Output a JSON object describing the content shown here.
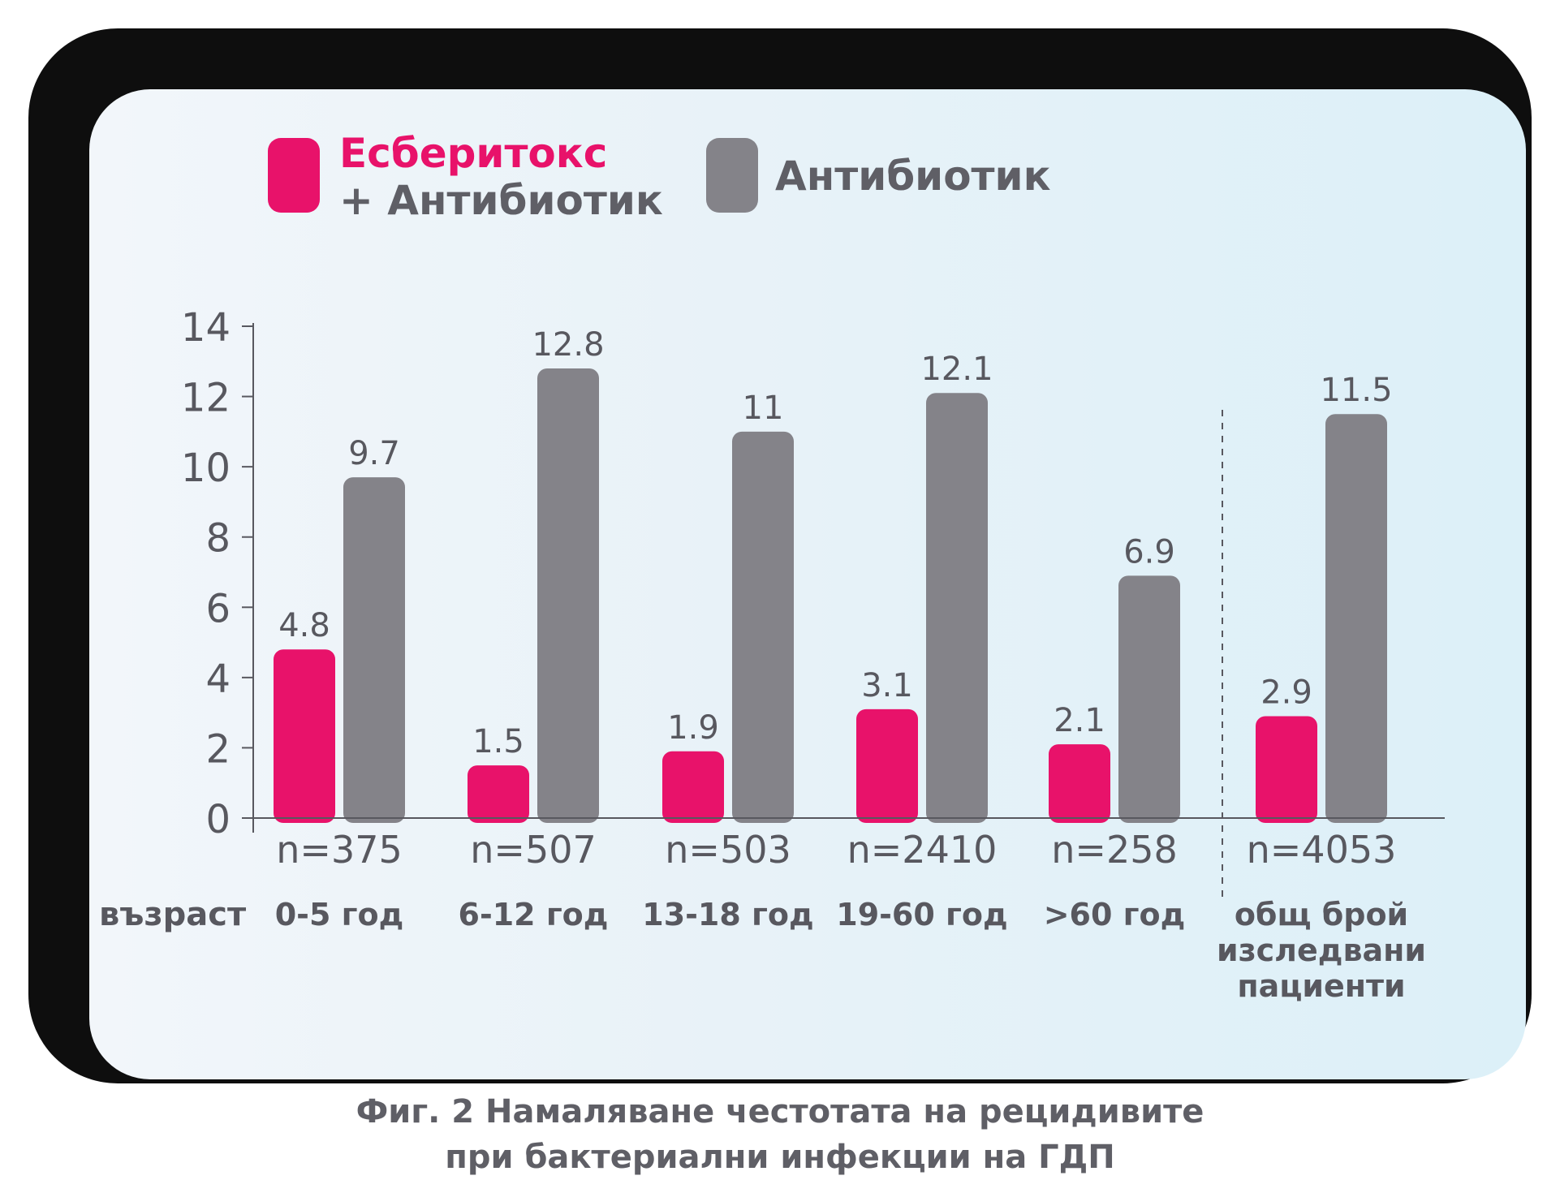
{
  "legend": {
    "series1_line1": "Есберитокс",
    "series1_line2": "+ Антибиотик",
    "series2": "Антибиотик"
  },
  "caption": {
    "line1": "Фиг. 2  Намаляване честотата на рецидивите",
    "line2": "при бактериални инфекции на ГДП"
  },
  "colors": {
    "series1": "#e8126a",
    "series2": "#848389",
    "text": "#58585f"
  },
  "chart_data": {
    "type": "bar",
    "categories": [
      "n=375",
      "n=507",
      "n=503",
      "n=2410",
      "n=258",
      "n=4053"
    ],
    "age_labels": [
      "0-5 год",
      "6-12 год",
      "13-18 год",
      "19-60 год",
      ">60 год",
      "общ брой|изследвани|пациенти"
    ],
    "age_row_label": "възраст",
    "series": [
      {
        "name": "Есберитокс + Антибиотик",
        "values": [
          4.8,
          1.5,
          1.9,
          3.1,
          2.1,
          2.9
        ]
      },
      {
        "name": "Антибиотик",
        "values": [
          9.7,
          12.8,
          11,
          12.1,
          6.9,
          11.5
        ]
      }
    ],
    "value_labels": [
      [
        "4.8",
        "1.5",
        "1.9",
        "3.1",
        "2.1",
        "2.9"
      ],
      [
        "9.7",
        "12.8",
        "11",
        "12.1",
        "6.9",
        "11.5"
      ]
    ],
    "yticks": [
      "0",
      "2",
      "4",
      "6",
      "8",
      "10",
      "12",
      "14"
    ],
    "ylim": [
      0,
      14
    ],
    "grid": false,
    "separator_before_last_group": true
  }
}
